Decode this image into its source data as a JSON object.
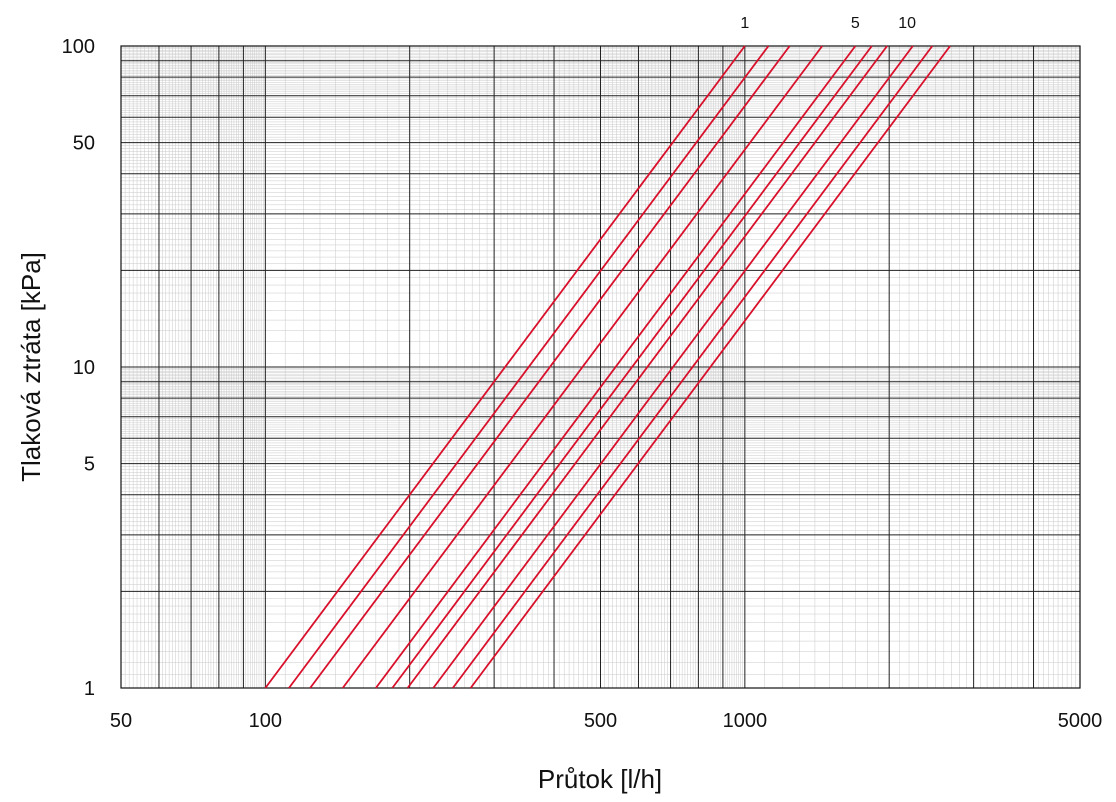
{
  "chart_data": {
    "type": "line",
    "title": "",
    "xlabel": "Průtok  [l/h]",
    "ylabel": "Tlaková ztráta  [kPa]",
    "xscale": "log",
    "yscale": "log",
    "xlim": [
      50,
      5000
    ],
    "ylim": [
      1,
      100
    ],
    "x_tick_labels": [
      "50",
      "100",
      "500",
      "1000",
      "5000"
    ],
    "x_ticks": [
      50,
      100,
      500,
      1000,
      5000
    ],
    "y_tick_labels": [
      "1",
      "5",
      "10",
      "50",
      "100"
    ],
    "y_ticks": [
      1,
      5,
      10,
      50,
      100
    ],
    "grid": true,
    "line_color": "#d8102b",
    "curve_labels": [
      {
        "text": "1",
        "flow": 1000
      },
      {
        "text": "5",
        "flow": 1700
      },
      {
        "text": "10",
        "flow": 2180
      }
    ],
    "series": [
      {
        "x": [
          100,
          1000
        ],
        "y": [
          1,
          100
        ]
      },
      {
        "x": [
          112,
          1120
        ],
        "y": [
          1,
          100
        ]
      },
      {
        "x": [
          124,
          1240
        ],
        "y": [
          1,
          100
        ]
      },
      {
        "x": [
          145,
          1450
        ],
        "y": [
          1,
          100
        ]
      },
      {
        "x": [
          170,
          1700
        ],
        "y": [
          1,
          100
        ]
      },
      {
        "x": [
          184,
          1840
        ],
        "y": [
          1,
          100
        ]
      },
      {
        "x": [
          198,
          1980
        ],
        "y": [
          1,
          100
        ]
      },
      {
        "x": [
          224,
          2240
        ],
        "y": [
          1,
          100
        ]
      },
      {
        "x": [
          246,
          2460
        ],
        "y": [
          1,
          100
        ]
      },
      {
        "x": [
          268,
          2680
        ],
        "y": [
          1,
          100
        ]
      }
    ]
  }
}
